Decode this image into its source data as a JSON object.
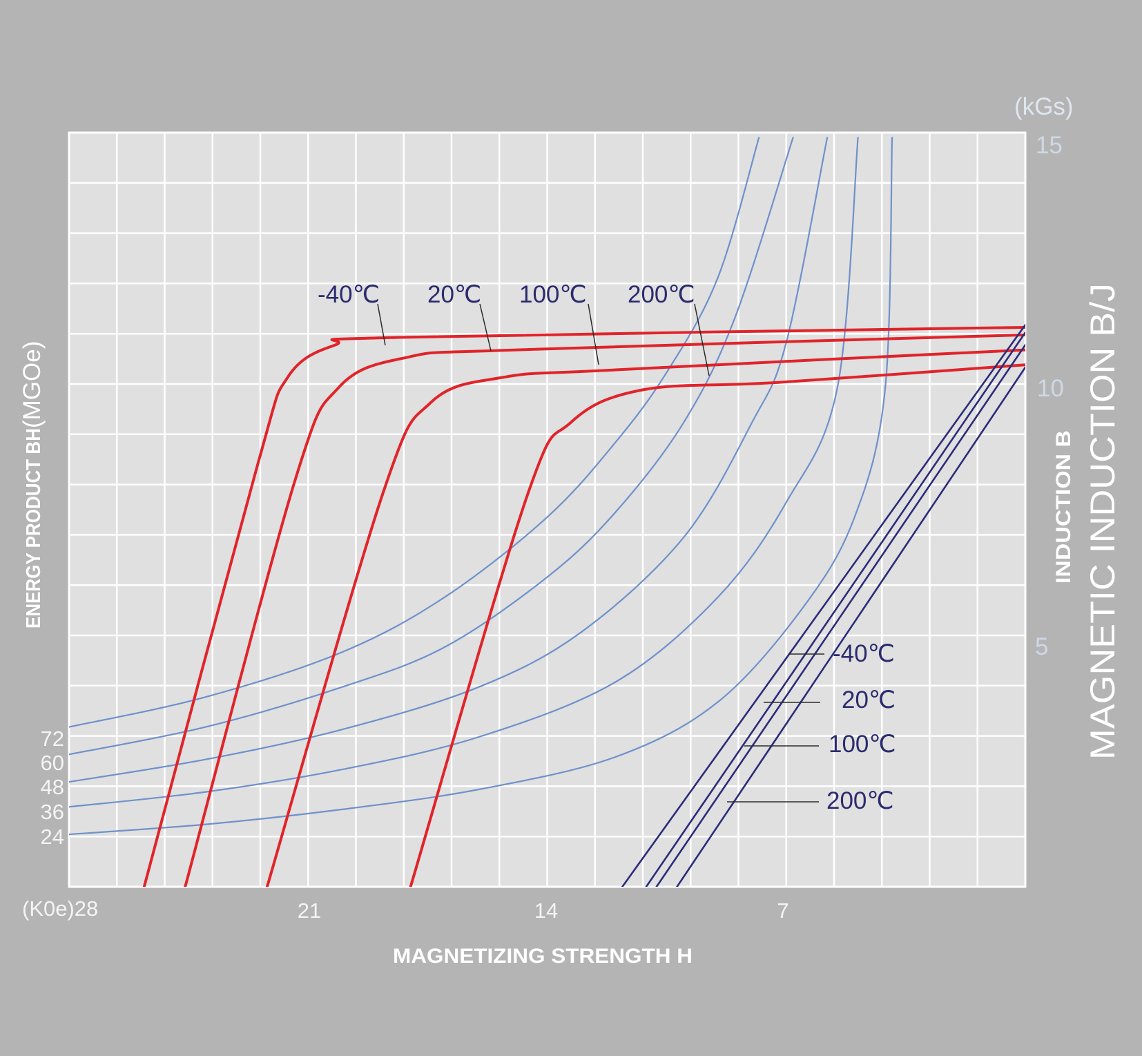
{
  "chart_data": {
    "type": "line",
    "x_axis": {
      "label": "MAGNETIZING STRENGTH  H",
      "unit": "(K0e)",
      "reversed": true,
      "ticks": [
        28,
        21,
        14,
        7
      ],
      "tick_labels": [
        "(K0e)28",
        "21",
        "14",
        "7"
      ],
      "range": [
        28,
        0
      ]
    },
    "y_axis_right": {
      "label_bold": "INDUCTION  B",
      "label_large": "MAGNETIC INDUCTION B/J",
      "unit": "(kGs)",
      "ticks": [
        15,
        10,
        5
      ],
      "range": [
        0,
        15
      ]
    },
    "y_axis_left": {
      "label_bold": "ENERGY PRODUCT BH",
      "label_unit": "(MGOe)",
      "ticks": [
        "72",
        "60",
        "48",
        "36",
        "24"
      ]
    },
    "grid": true,
    "demagnetization_J": [
      {
        "name": "-40℃",
        "color": "#e0242a",
        "points": [
          [
            25.8,
            0
          ],
          [
            22.5,
            8.4
          ],
          [
            21.6,
            10.2
          ],
          [
            20.2,
            10.85
          ],
          [
            18.3,
            11.0
          ],
          [
            0,
            11.2
          ]
        ]
      },
      {
        "name": "20℃",
        "color": "#e0242a",
        "points": [
          [
            24.6,
            0
          ],
          [
            21.4,
            8.1
          ],
          [
            20.1,
            10.0
          ],
          [
            18.1,
            10.6
          ],
          [
            14.9,
            10.75
          ],
          [
            0,
            11.05
          ]
        ]
      },
      {
        "name": "100℃",
        "color": "#e0242a",
        "points": [
          [
            22.2,
            0
          ],
          [
            18.8,
            7.9
          ],
          [
            17.4,
            9.7
          ],
          [
            15.3,
            10.2
          ],
          [
            12.0,
            10.35
          ],
          [
            0,
            10.75
          ]
        ]
      },
      {
        "name": "200℃",
        "color": "#e0242a",
        "points": [
          [
            18.0,
            0
          ],
          [
            14.6,
            7.8
          ],
          [
            13.3,
            9.3
          ],
          [
            11.2,
            9.95
          ],
          [
            7.2,
            10.1
          ],
          [
            0,
            10.45
          ]
        ]
      }
    ],
    "demagnetization_B": [
      {
        "name": "-40℃",
        "color": "#2b2b7a",
        "points": [
          [
            11.8,
            0
          ],
          [
            0,
            11.25
          ]
        ]
      },
      {
        "name": "20℃",
        "color": "#2b2b7a",
        "points": [
          [
            11.1,
            0
          ],
          [
            0,
            11.1
          ]
        ]
      },
      {
        "name": "100℃",
        "color": "#2b2b7a",
        "points": [
          [
            10.8,
            0
          ],
          [
            0,
            10.85
          ]
        ]
      },
      {
        "name": "200℃",
        "color": "#2b2b7a",
        "points": [
          [
            10.2,
            0
          ],
          [
            0,
            10.4
          ]
        ]
      }
    ],
    "energy_product_isolines": [
      {
        "value": "72",
        "color": "#6f90cc",
        "points": [
          [
            28,
            3.2
          ],
          [
            24,
            3.8
          ],
          [
            20,
            4.7
          ],
          [
            17,
            5.8
          ],
          [
            14,
            7.4
          ],
          [
            12,
            8.9
          ],
          [
            10.5,
            10.3
          ],
          [
            9,
            12.2
          ],
          [
            7.8,
            15
          ]
        ]
      },
      {
        "name": "60",
        "color": "#6f90cc",
        "points": [
          [
            28,
            2.65
          ],
          [
            24,
            3.2
          ],
          [
            20,
            4.0
          ],
          [
            17,
            4.8
          ],
          [
            14,
            6.2
          ],
          [
            12,
            7.5
          ],
          [
            10,
            9.3
          ],
          [
            8.5,
            11.4
          ],
          [
            6.8,
            15
          ]
        ]
      },
      {
        "value": "48",
        "color": "#6f90cc",
        "points": [
          [
            28,
            2.1
          ],
          [
            24,
            2.55
          ],
          [
            20,
            3.15
          ],
          [
            16,
            4.0
          ],
          [
            13,
            5.1
          ],
          [
            10,
            7.0
          ],
          [
            8,
            9.3
          ],
          [
            7,
            10.9
          ],
          [
            5.8,
            15
          ]
        ]
      },
      {
        "value": "36",
        "color": "#6f90cc",
        "points": [
          [
            28,
            1.6
          ],
          [
            24,
            1.9
          ],
          [
            20,
            2.35
          ],
          [
            16,
            3.0
          ],
          [
            12,
            4.1
          ],
          [
            9,
            5.8
          ],
          [
            7,
            7.7
          ],
          [
            5.5,
            10.0
          ],
          [
            4.9,
            15
          ]
        ]
      },
      {
        "value": "24",
        "color": "#6f90cc",
        "points": [
          [
            28,
            1.05
          ],
          [
            24,
            1.25
          ],
          [
            20,
            1.55
          ],
          [
            16,
            1.95
          ],
          [
            12,
            2.6
          ],
          [
            9,
            3.7
          ],
          [
            6.5,
            5.6
          ],
          [
            5,
            7.4
          ],
          [
            4.1,
            10.0
          ],
          [
            3.9,
            15
          ]
        ]
      }
    ],
    "annotations": {
      "top_labels": [
        "-40℃",
        "20℃",
        "100℃",
        "200℃"
      ],
      "right_labels": [
        "-40℃",
        "20℃",
        "100℃",
        "200℃"
      ]
    }
  }
}
